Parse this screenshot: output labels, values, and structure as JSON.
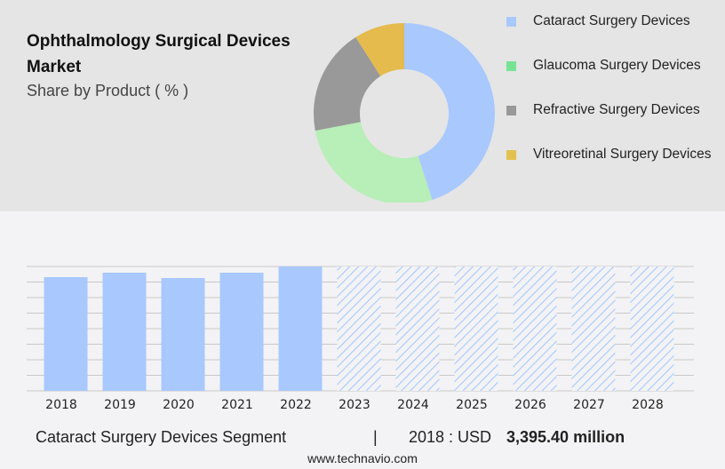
{
  "header": {
    "title": "Ophthalmology Surgical Devices Market",
    "subtitle": "Share by Product ( % )"
  },
  "colors": {
    "cataract": "#a8c8fe",
    "glaucoma": "#b8eeb8",
    "refractive": "#999999",
    "vitreoretinal": "#e5bb4e",
    "bar": "#a8c8fe"
  },
  "chart_data": [
    {
      "type": "pie",
      "donut": true,
      "legend": {
        "position": "right",
        "entries": [
          "Cataract Surgery Devices",
          "Glaucoma Surgery Devices",
          "Refractive Surgery Devices",
          "Vitreoretinal Surgery Devices"
        ]
      },
      "slices": [
        {
          "name": "Cataract Surgery Devices",
          "value": 45,
          "color": "#a8c8fe"
        },
        {
          "name": "Glaucoma Surgery Devices",
          "value": 27,
          "color": "#b8eeb8"
        },
        {
          "name": "Refractive Surgery Devices",
          "value": 19,
          "color": "#999999"
        },
        {
          "name": "Vitreoretinal Surgery Devices",
          "value": 9,
          "color": "#e5bb4e"
        }
      ],
      "legend_swatch_colors": [
        "#a8c8fe",
        "#77e495",
        "#999999",
        "#e2c24f"
      ]
    },
    {
      "type": "bar",
      "categories": [
        "2018",
        "2019",
        "2020",
        "2021",
        "2022",
        "2023",
        "2024",
        "2025",
        "2026",
        "2027",
        "2028"
      ],
      "values": [
        3395.4,
        3528,
        3369,
        3528,
        3714,
        null,
        null,
        null,
        null,
        null,
        null
      ],
      "forecast_hatched": [
        "2023",
        "2024",
        "2025",
        "2026",
        "2027",
        "2028"
      ],
      "ylim": [
        0,
        3714
      ],
      "grid": true,
      "gridlines": 8
    }
  ],
  "footer": {
    "segment": "Cataract Surgery Devices Segment",
    "separator": "|",
    "year_label": "2018 : USD",
    "value": "3,395.40 million",
    "url": "www.technavio.com"
  }
}
